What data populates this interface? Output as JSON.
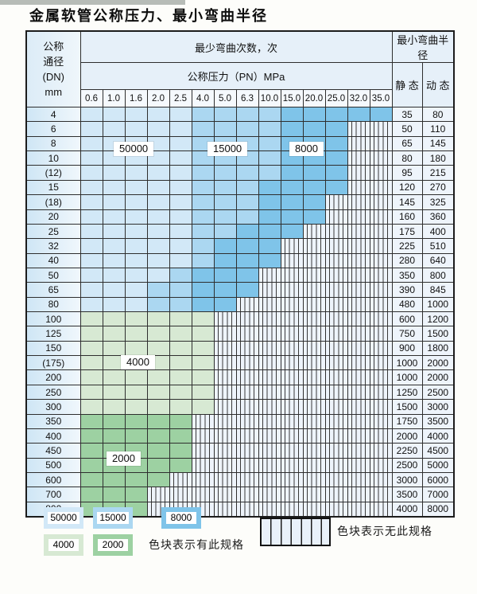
{
  "title": "金属软管公称压力、最小弯曲半径",
  "colors": {
    "cycles_50000": "#d2e8f7",
    "cycles_15000": "#abd7f1",
    "cycles_8000": "#7fc4e9",
    "cycles_4000": "#d7e9d3",
    "cycles_2000": "#9dd1a2",
    "no_spec_bg": "#eef4fb",
    "grid_line": "#2e2e2e"
  },
  "table": {
    "header": {
      "dn_lines": [
        "公称",
        "通径",
        "(DN)",
        "mm"
      ],
      "bend_cycles": "最少弯曲次数，次",
      "pressure": "公称压力（PN）MPa",
      "pressures": [
        "0.6",
        "1.0",
        "1.6",
        "2.0",
        "2.5",
        "4.0",
        "5.0",
        "6.3",
        "10.0",
        "15.0",
        "20.0",
        "25.0",
        "32.0",
        "35.0"
      ],
      "radius": "最小弯曲半径",
      "static": "静 态",
      "dynamic": "动 态"
    },
    "rows": [
      {
        "dn": "4",
        "cells": "aaaaabbbbccccc",
        "static": "35",
        "dynamic": "80"
      },
      {
        "dn": "6",
        "cells": "aaaaabbbbccc..",
        "static": "50",
        "dynamic": "110"
      },
      {
        "dn": "8",
        "cells": "aaaaabbbbccc..",
        "static": "65",
        "dynamic": "145"
      },
      {
        "dn": "10",
        "cells": "aaaaabbbbccc..",
        "static": "80",
        "dynamic": "180"
      },
      {
        "dn": "(12)",
        "cells": "aaaaabbbbccc..",
        "static": "95",
        "dynamic": "215"
      },
      {
        "dn": "15",
        "cells": "aaaaabbbcccc..",
        "static": "120",
        "dynamic": "270"
      },
      {
        "dn": "(18)",
        "cells": "aaaaabbbccc...",
        "static": "145",
        "dynamic": "325"
      },
      {
        "dn": "20",
        "cells": "aaaaabbbccc...",
        "static": "160",
        "dynamic": "360"
      },
      {
        "dn": "25",
        "cells": "aaaaabbccc....",
        "static": "175",
        "dynamic": "400"
      },
      {
        "dn": "32",
        "cells": "aaaaabccc.....",
        "static": "225",
        "dynamic": "510"
      },
      {
        "dn": "40",
        "cells": "aaaaabccc.....",
        "static": "280",
        "dynamic": "640"
      },
      {
        "dn": "50",
        "cells": "aaaabccc......",
        "static": "350",
        "dynamic": "800"
      },
      {
        "dn": "65",
        "cells": "aaabbccc......",
        "static": "390",
        "dynamic": "845"
      },
      {
        "dn": "80",
        "cells": "aaabbcc.......",
        "static": "480",
        "dynamic": "1000"
      },
      {
        "dn": "100",
        "cells": "gggggg........",
        "static": "600",
        "dynamic": "1200"
      },
      {
        "dn": "125",
        "cells": "gggggg........",
        "static": "750",
        "dynamic": "1500"
      },
      {
        "dn": "150",
        "cells": "gggggg........",
        "static": "900",
        "dynamic": "1800"
      },
      {
        "dn": "(175)",
        "cells": "gggggg........",
        "static": "1000",
        "dynamic": "2000"
      },
      {
        "dn": "200",
        "cells": "gggggg........",
        "static": "1000",
        "dynamic": "2000"
      },
      {
        "dn": "250",
        "cells": "gggggg........",
        "static": "1250",
        "dynamic": "2500"
      },
      {
        "dn": "300",
        "cells": "gggggg........",
        "static": "1500",
        "dynamic": "3000"
      },
      {
        "dn": "350",
        "cells": "hhhhh.........",
        "static": "1750",
        "dynamic": "3500"
      },
      {
        "dn": "400",
        "cells": "hhhhh.........",
        "static": "2000",
        "dynamic": "4000"
      },
      {
        "dn": "450",
        "cells": "hhhhh.........",
        "static": "2250",
        "dynamic": "4500"
      },
      {
        "dn": "500",
        "cells": "hhhhh.........",
        "static": "2500",
        "dynamic": "5000"
      },
      {
        "dn": "600",
        "cells": "hhhh..........",
        "static": "3000",
        "dynamic": "6000"
      },
      {
        "dn": "700",
        "cells": "hhh...........",
        "static": "3500",
        "dynamic": "7000"
      },
      {
        "dn": "800",
        "cells": "hhh...........",
        "static": "4000",
        "dynamic": "8000"
      }
    ]
  },
  "region_labels": [
    "50000",
    "15000",
    "8000",
    "4000",
    "2000"
  ],
  "legend": {
    "swatches": [
      {
        "label": "50000",
        "zone": "a"
      },
      {
        "label": "15000",
        "zone": "b"
      },
      {
        "label": "8000",
        "zone": "c"
      },
      {
        "label": "4000",
        "zone": "g"
      },
      {
        "label": "2000",
        "zone": "h"
      }
    ],
    "has_spec_note": "色块表示有此规格",
    "no_spec_note": "色块表示无此规格"
  }
}
